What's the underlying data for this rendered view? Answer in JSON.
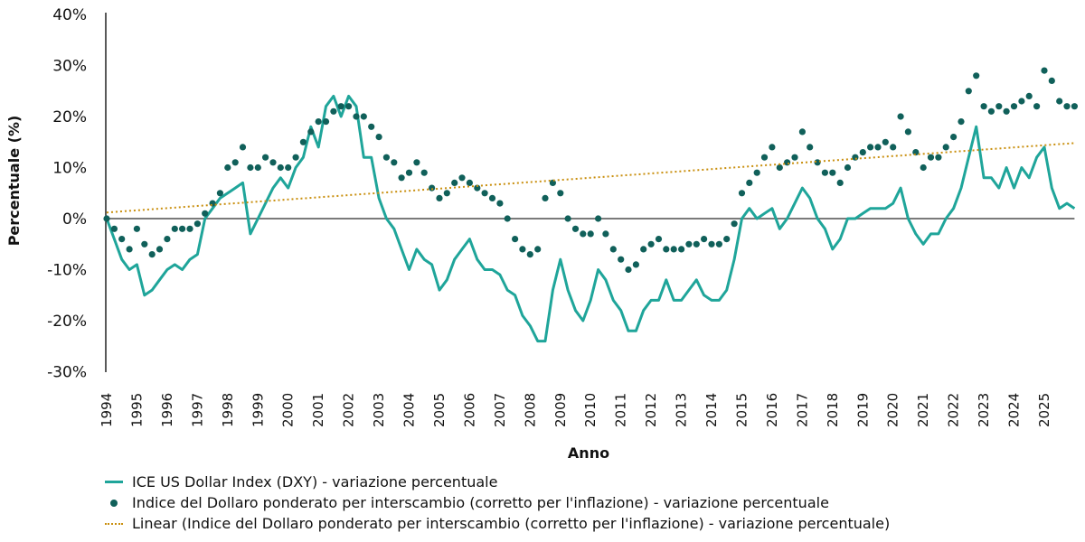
{
  "chart_data": {
    "type": "line",
    "title": "",
    "xlabel": "Anno",
    "ylabel": "Percentuale (%)",
    "ylim": [
      -30,
      40
    ],
    "xlim": [
      1994,
      2026
    ],
    "y_ticks": [
      "40%",
      "30%",
      "20%",
      "10%",
      "0%",
      "-10%",
      "-20%",
      "-30%"
    ],
    "y_tick_values": [
      40,
      30,
      20,
      10,
      0,
      -10,
      -20,
      -30
    ],
    "x_ticks": [
      "1994",
      "1995",
      "1996",
      "1997",
      "1998",
      "1999",
      "2000",
      "2001",
      "2002",
      "2003",
      "2004",
      "2005",
      "2006",
      "2007",
      "2008",
      "2009",
      "2010",
      "2011",
      "2012",
      "2013",
      "2014",
      "2015",
      "2016",
      "2017",
      "2018",
      "2019",
      "2020",
      "2021",
      "2022",
      "2023",
      "2024",
      "2025"
    ],
    "grid": false,
    "legend_position": "bottom-left",
    "colors": {
      "dxy": "#1fa59a",
      "twi": "#10605a",
      "trend": "#c98f0e",
      "zero": "#7a7a7a"
    },
    "series": [
      {
        "name": "ICE US Dollar Index (DXY) - variazione percentuale",
        "style": "line",
        "x_start": 1994,
        "x_step": 0.25,
        "values": [
          0,
          -4,
          -8,
          -10,
          -9,
          -15,
          -14,
          -12,
          -10,
          -9,
          -10,
          -8,
          -7,
          0,
          2,
          4,
          5,
          6,
          7,
          -3,
          0,
          3,
          6,
          8,
          6,
          10,
          12,
          18,
          14,
          22,
          24,
          20,
          24,
          22,
          12,
          12,
          4,
          0,
          -2,
          -6,
          -10,
          -6,
          -8,
          -9,
          -14,
          -12,
          -8,
          -6,
          -4,
          -8,
          -10,
          -10,
          -11,
          -14,
          -15,
          -19,
          -21,
          -24,
          -24,
          -14,
          -8,
          -14,
          -18,
          -20,
          -16,
          -10,
          -12,
          -16,
          -18,
          -22,
          -22,
          -18,
          -16,
          -16,
          -12,
          -16,
          -16,
          -14,
          -12,
          -15,
          -16,
          -16,
          -14,
          -8,
          0,
          2,
          0,
          1,
          2,
          -2,
          0,
          3,
          6,
          4,
          0,
          -2,
          -6,
          -4,
          0,
          0,
          1,
          2,
          2,
          2,
          3,
          6,
          0,
          -3,
          -5,
          -3,
          -3,
          0,
          2,
          6,
          12,
          18,
          8,
          8,
          6,
          10,
          6,
          10,
          8,
          12,
          14,
          6,
          2,
          3,
          2
        ]
      },
      {
        "name": "Indice del Dollaro ponderato per interscambio (corretto per l'inflazione) - variazione percentuale",
        "style": "markers",
        "x_start": 1994,
        "x_step": 0.25,
        "values": [
          0,
          -2,
          -4,
          -6,
          -2,
          -5,
          -7,
          -6,
          -4,
          -2,
          -2,
          -2,
          -1,
          1,
          3,
          5,
          10,
          11,
          14,
          10,
          10,
          12,
          11,
          10,
          10,
          12,
          15,
          17,
          19,
          19,
          21,
          22,
          22,
          20,
          20,
          18,
          16,
          12,
          11,
          8,
          9,
          11,
          9,
          6,
          4,
          5,
          7,
          8,
          7,
          6,
          5,
          4,
          3,
          0,
          -4,
          -6,
          -7,
          -6,
          4,
          7,
          5,
          0,
          -2,
          -3,
          -3,
          0,
          -3,
          -6,
          -8,
          -10,
          -9,
          -6,
          -5,
          -4,
          -6,
          -6,
          -6,
          -5,
          -5,
          -4,
          -5,
          -5,
          -4,
          -1,
          5,
          7,
          9,
          12,
          14,
          10,
          11,
          12,
          17,
          14,
          11,
          9,
          9,
          7,
          10,
          12,
          13,
          14,
          14,
          15,
          14,
          20,
          17,
          13,
          10,
          12,
          12,
          14,
          16,
          19,
          25,
          28,
          22,
          21,
          22,
          21,
          22,
          23,
          24,
          22,
          29,
          27,
          23,
          22,
          22
        ]
      },
      {
        "name": "Linear (Indice del Dollaro ponderato per interscambio (corretto per l'inflazione) - variazione percentuale)",
        "style": "dotted-line",
        "x": [
          1994,
          2026
        ],
        "values": [
          1.2,
          14.8
        ]
      }
    ]
  }
}
